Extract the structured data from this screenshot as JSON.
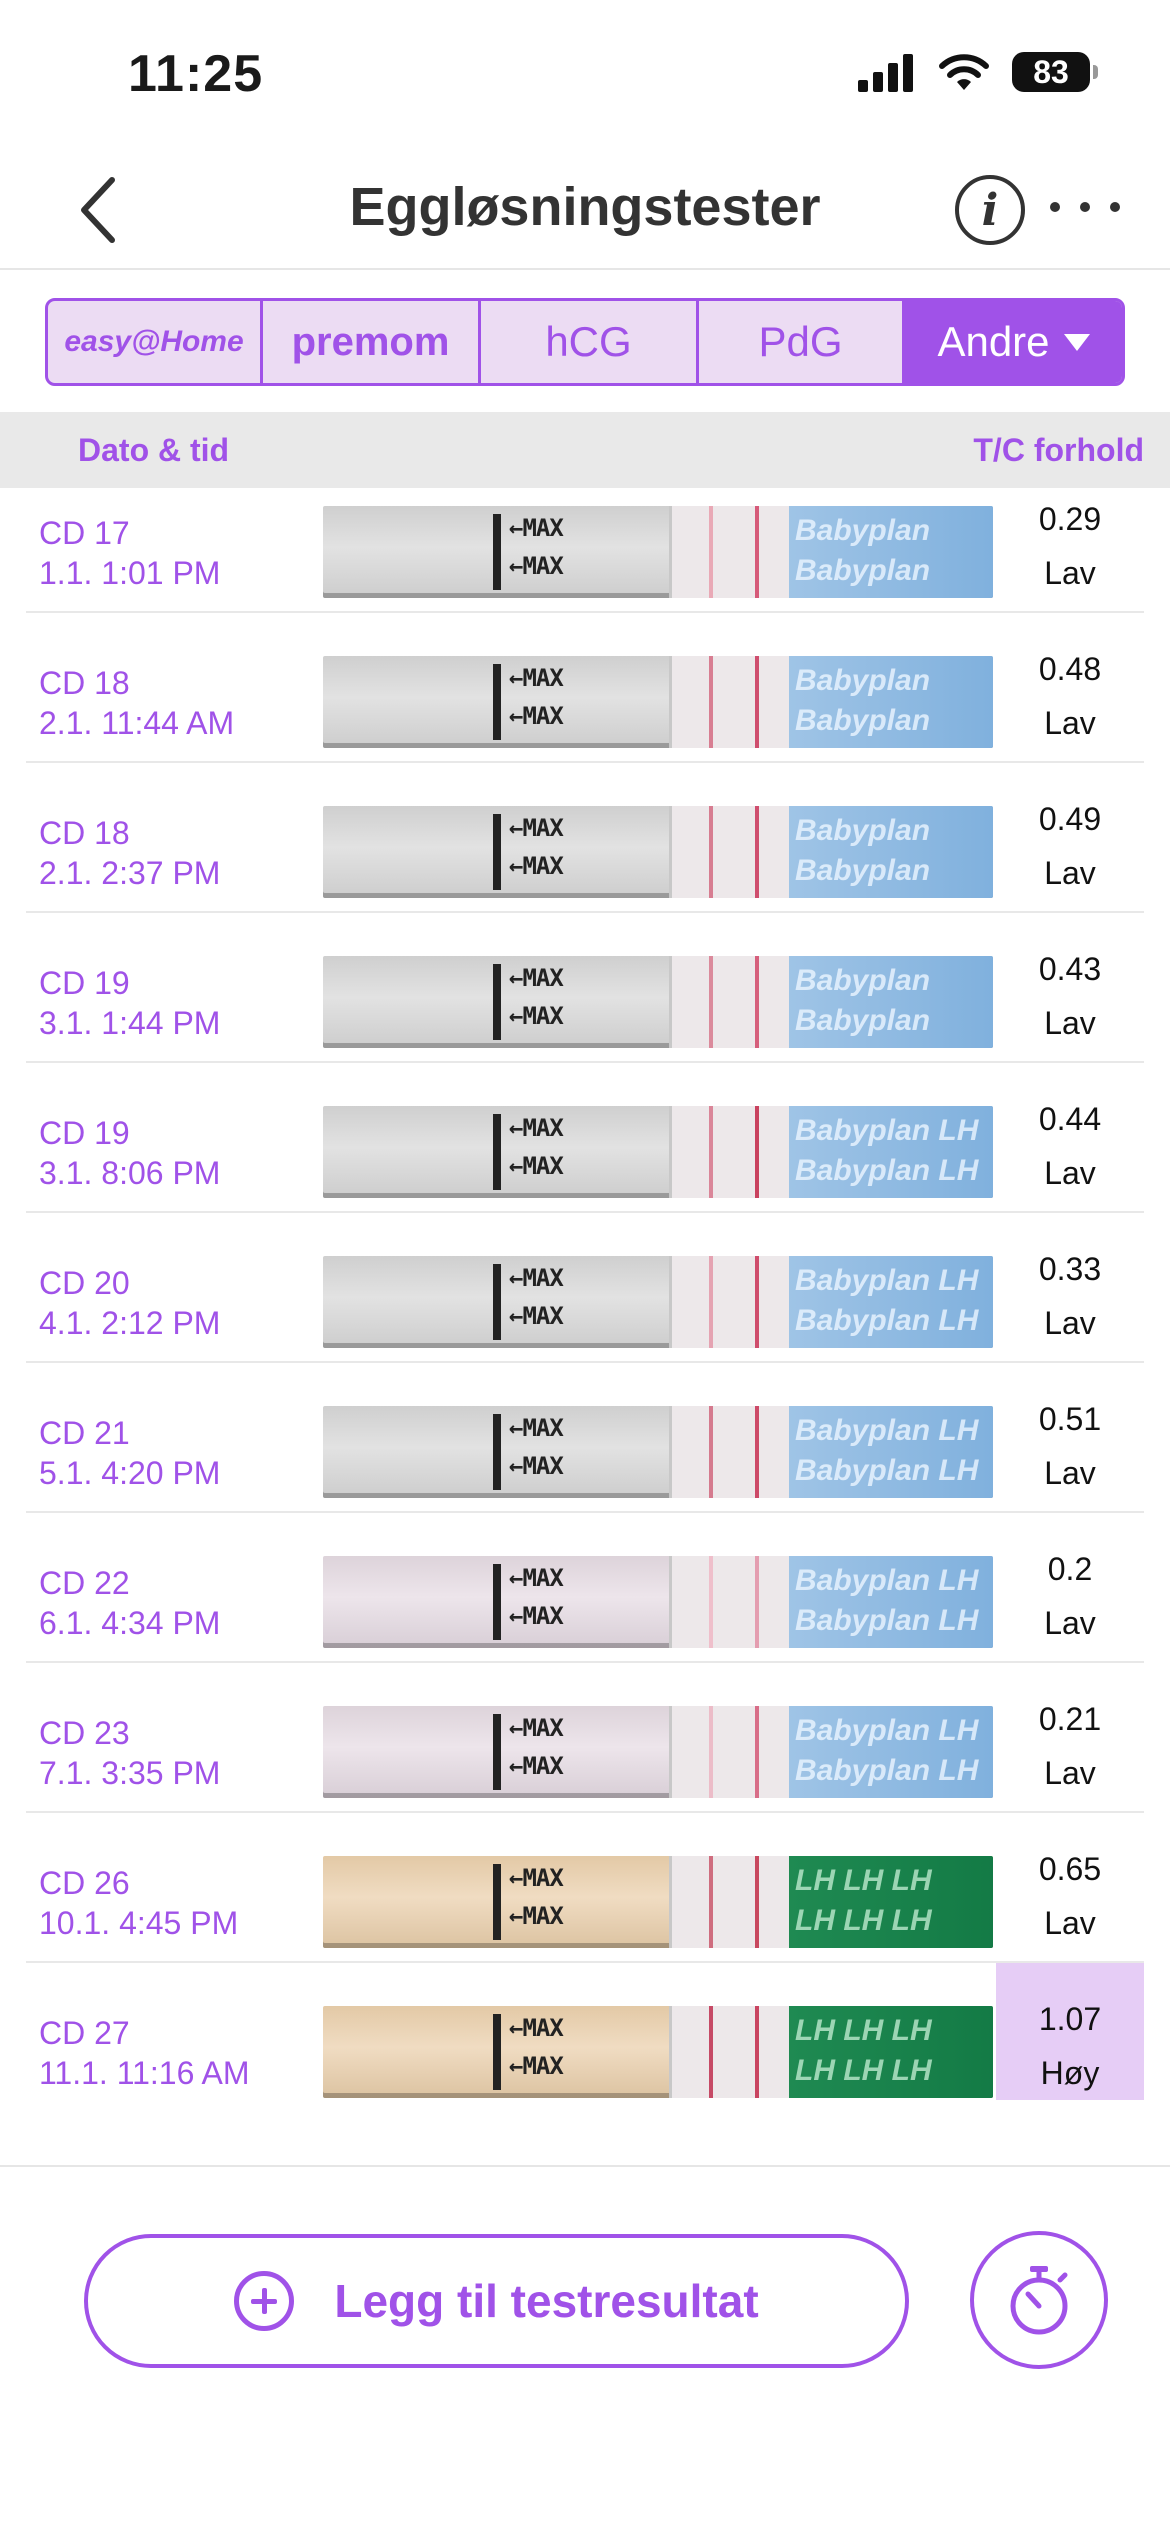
{
  "status_bar": {
    "time": "11:25",
    "battery": "83"
  },
  "header": {
    "title": "Eggløsningstester"
  },
  "brand_tabs": {
    "easy_home": "easy@Home",
    "premom": "premom",
    "hcg": "hCG",
    "pdg": "PdG",
    "andre": "Andre",
    "selected": "Andre"
  },
  "columns": {
    "date_time": "Dato & tid",
    "ratio": "T/C forhold"
  },
  "rows": [
    {
      "cd": "CD 17",
      "datetime": "1.1. 1:01 PM",
      "ratio": "0.29",
      "level": "Lav",
      "brand_text": "Babyplan",
      "strip_style": "blue",
      "test_line_color": "#e9a9b6",
      "control_line_color": "#d65a79"
    },
    {
      "cd": "CD 18",
      "datetime": "2.1. 11:44 AM",
      "ratio": "0.48",
      "level": "Lav",
      "brand_text": "Babyplan",
      "strip_style": "blue",
      "test_line_color": "#d87e92",
      "control_line_color": "#cf4e6e"
    },
    {
      "cd": "CD 18",
      "datetime": "2.1. 2:37 PM",
      "ratio": "0.49",
      "level": "Lav",
      "brand_text": "Babyplan",
      "strip_style": "blue",
      "test_line_color": "#d77d91",
      "control_line_color": "#cf4e6e"
    },
    {
      "cd": "CD 19",
      "datetime": "3.1. 1:44 PM",
      "ratio": "0.43",
      "level": "Lav",
      "brand_text": "Babyplan",
      "strip_style": "blue",
      "test_line_color": "#db8a9c",
      "control_line_color": "#d65f7c"
    },
    {
      "cd": "CD 19",
      "datetime": "3.1. 8:06 PM",
      "ratio": "0.44",
      "level": "Lav",
      "brand_text": "Babyplan LH",
      "strip_style": "blue",
      "test_line_color": "#da8699",
      "control_line_color": "#c9425f"
    },
    {
      "cd": "CD 20",
      "datetime": "4.1. 2:12 PM",
      "ratio": "0.33",
      "level": "Lav",
      "brand_text": "Babyplan LH",
      "strip_style": "blue",
      "test_line_color": "#e5a3b2",
      "control_line_color": "#cf4d6c"
    },
    {
      "cd": "CD 21",
      "datetime": "5.1. 4:20 PM",
      "ratio": "0.51",
      "level": "Lav",
      "brand_text": "Babyplan LH",
      "strip_style": "blue",
      "test_line_color": "#d57a8e",
      "control_line_color": "#cd4a68"
    },
    {
      "cd": "CD 22",
      "datetime": "6.1. 4:34 PM",
      "ratio": "0.2",
      "level": "Lav",
      "brand_text": "Babyplan LH",
      "strip_style": "blue",
      "test_line_color": "#efbfcb",
      "control_line_color": "#e49db0"
    },
    {
      "cd": "CD 23",
      "datetime": "7.1. 3:35 PM",
      "ratio": "0.21",
      "level": "Lav",
      "brand_text": "Babyplan LH",
      "strip_style": "blue",
      "test_line_color": "#ecbcc8",
      "control_line_color": "#d86d88"
    },
    {
      "cd": "CD 26",
      "datetime": "10.1. 4:45 PM",
      "ratio": "0.65",
      "level": "Lav",
      "brand_text": "LH LH LH",
      "strip_style": "green",
      "test_line_color": "#cf6d7f",
      "control_line_color": "#c8485f"
    },
    {
      "cd": "CD 27",
      "datetime": "11.1. 11:16 AM",
      "ratio": "1.07",
      "level": "Høy",
      "brand_text": "LH LH LH",
      "strip_style": "green",
      "test_line_color": "#c64a66",
      "control_line_color": "#c94561",
      "highlight": true
    }
  ],
  "strip_text": {
    "max": "←MAX"
  },
  "footer": {
    "add_result": "Legg til testresultat"
  },
  "colors": {
    "accent": "#a052e8",
    "accent_light": "#ecdcf3",
    "highlight": "#e6cdf6"
  },
  "icons": [
    "back-chevron-icon",
    "info-icon",
    "more-dots-icon",
    "plus-circle-icon",
    "timer-icon",
    "signal-icon",
    "wifi-icon",
    "battery-icon"
  ]
}
